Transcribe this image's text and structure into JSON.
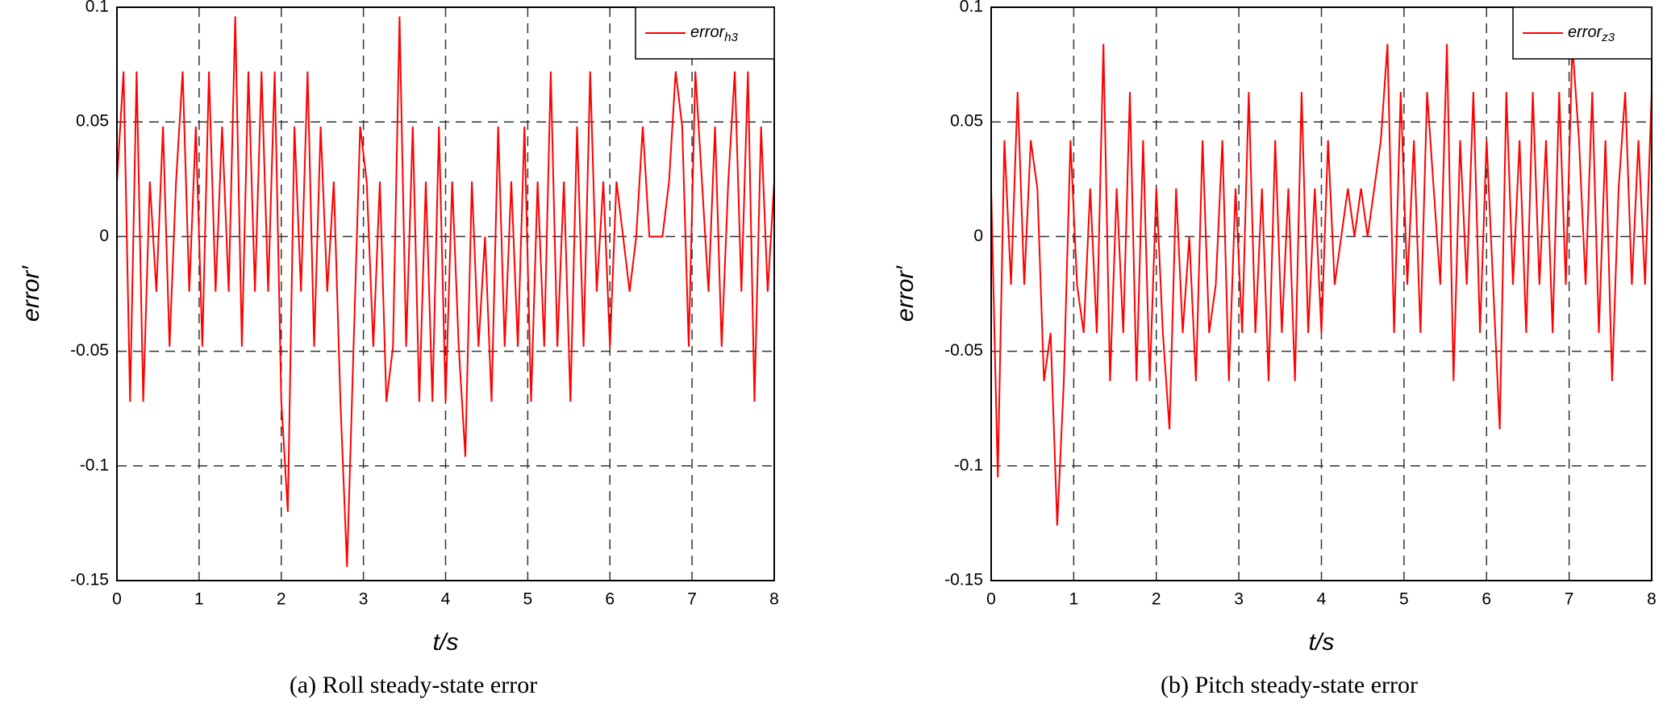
{
  "chart_data": [
    {
      "type": "line",
      "caption": "(a) Roll steady-state error",
      "xlabel": "t/s",
      "ylabel": "error′",
      "xlim": [
        0,
        8
      ],
      "xticks": [
        0,
        1,
        2,
        3,
        4,
        5,
        6,
        7,
        8
      ],
      "ylim": [
        -0.15,
        0.1
      ],
      "yticks": [
        -0.15,
        -0.1,
        -0.05,
        0,
        0.05,
        0.1
      ],
      "grid": true,
      "legend": "upper right",
      "x": [
        0,
        0.08,
        0.16,
        0.24,
        0.32,
        0.4,
        0.48,
        0.56,
        0.64,
        0.72,
        0.8,
        0.88,
        0.96,
        1.04,
        1.12,
        1.2,
        1.28,
        1.36,
        1.44,
        1.52,
        1.6,
        1.68,
        1.76,
        1.84,
        1.92,
        2,
        2.08,
        2.16,
        2.24,
        2.32,
        2.4,
        2.48,
        2.56,
        2.64,
        2.72,
        2.8,
        2.88,
        2.96,
        3.04,
        3.12,
        3.2,
        3.28,
        3.36,
        3.44,
        3.52,
        3.6,
        3.68,
        3.76,
        3.84,
        3.92,
        4,
        4.08,
        4.16,
        4.24,
        4.32,
        4.4,
        4.48,
        4.56,
        4.64,
        4.72,
        4.8,
        4.88,
        4.96,
        5.04,
        5.12,
        5.2,
        5.28,
        5.36,
        5.44,
        5.52,
        5.6,
        5.68,
        5.76,
        5.84,
        5.92,
        6,
        6.08,
        6.16,
        6.24,
        6.32,
        6.4,
        6.48,
        6.56,
        6.64,
        6.72,
        6.8,
        6.88,
        6.96,
        7.04,
        7.12,
        7.2,
        7.28,
        7.36,
        7.44,
        7.52,
        7.6,
        7.68,
        7.76,
        7.84,
        7.92,
        8
      ],
      "series": [
        {
          "name": "error",
          "name_sub": "h3",
          "color": "#ff0000",
          "values": [
            0.024,
            0.072,
            -0.072,
            0.072,
            -0.072,
            0.024,
            -0.024,
            0.048,
            -0.048,
            0.024,
            0.072,
            -0.024,
            0.048,
            -0.048,
            0.072,
            -0.024,
            0.048,
            -0.024,
            0.096,
            -0.048,
            0.072,
            -0.024,
            0.072,
            -0.024,
            0.072,
            -0.072,
            -0.12,
            0.048,
            -0.024,
            0.072,
            -0.048,
            0.048,
            -0.024,
            0.024,
            -0.072,
            -0.144,
            -0.048,
            0.048,
            0.024,
            -0.048,
            0.024,
            -0.072,
            -0.048,
            0.096,
            -0.048,
            0.048,
            -0.072,
            0.024,
            -0.072,
            0.048,
            -0.072,
            0.024,
            -0.048,
            -0.096,
            0.024,
            -0.048,
            0,
            -0.072,
            0.048,
            -0.048,
            0.024,
            -0.048,
            0.048,
            -0.072,
            0.024,
            -0.048,
            0.072,
            -0.048,
            0.024,
            -0.072,
            0.048,
            -0.048,
            0.072,
            -0.024,
            0.024,
            -0.048,
            0.024,
            0,
            -0.024,
            0,
            0.048,
            0,
            0,
            0,
            0.024,
            0.072,
            0.048,
            -0.048,
            0.072,
            0.024,
            -0.024,
            0.048,
            -0.048,
            0.024,
            0.072,
            -0.024,
            0.072,
            -0.072,
            0.048,
            -0.024,
            0.024
          ]
        }
      ]
    },
    {
      "type": "line",
      "caption": "(b) Pitch steady-state error",
      "xlabel": "t/s",
      "ylabel": "error′",
      "xlim": [
        0,
        8
      ],
      "xticks": [
        0,
        1,
        2,
        3,
        4,
        5,
        6,
        7,
        8
      ],
      "ylim": [
        -0.15,
        0.1
      ],
      "yticks": [
        -0.15,
        -0.1,
        -0.05,
        0,
        0.05,
        0.1
      ],
      "grid": true,
      "legend": "upper right",
      "x": [
        0,
        0.08,
        0.16,
        0.24,
        0.32,
        0.4,
        0.48,
        0.56,
        0.64,
        0.72,
        0.8,
        0.88,
        0.96,
        1.04,
        1.12,
        1.2,
        1.28,
        1.36,
        1.44,
        1.52,
        1.6,
        1.68,
        1.76,
        1.84,
        1.92,
        2,
        2.08,
        2.16,
        2.24,
        2.32,
        2.4,
        2.48,
        2.56,
        2.64,
        2.72,
        2.8,
        2.88,
        2.96,
        3.04,
        3.12,
        3.2,
        3.28,
        3.36,
        3.44,
        3.52,
        3.6,
        3.68,
        3.76,
        3.84,
        3.92,
        4,
        4.08,
        4.16,
        4.24,
        4.32,
        4.4,
        4.48,
        4.56,
        4.64,
        4.72,
        4.8,
        4.88,
        4.96,
        5.04,
        5.12,
        5.2,
        5.28,
        5.36,
        5.44,
        5.52,
        5.6,
        5.68,
        5.76,
        5.84,
        5.92,
        6,
        6.08,
        6.16,
        6.24,
        6.32,
        6.4,
        6.48,
        6.56,
        6.64,
        6.72,
        6.8,
        6.88,
        6.96,
        7.04,
        7.12,
        7.2,
        7.28,
        7.36,
        7.44,
        7.52,
        7.6,
        7.68,
        7.76,
        7.84,
        7.92,
        8
      ],
      "series": [
        {
          "name": "error",
          "name_sub": "z3",
          "color": "#ff0000",
          "values": [
            0.021,
            -0.105,
            0.042,
            -0.021,
            0.063,
            -0.021,
            0.042,
            0.021,
            -0.063,
            -0.042,
            -0.126,
            -0.063,
            0.042,
            -0.021,
            -0.042,
            0.021,
            -0.042,
            0.084,
            -0.063,
            0.021,
            -0.042,
            0.063,
            -0.063,
            0.042,
            -0.063,
            0.021,
            -0.042,
            -0.084,
            0.021,
            -0.042,
            0,
            -0.063,
            0.042,
            -0.042,
            -0.021,
            0.042,
            -0.063,
            0.021,
            -0.042,
            0.063,
            -0.042,
            0.021,
            -0.063,
            0.042,
            -0.042,
            0.021,
            -0.063,
            0.063,
            -0.042,
            0.021,
            -0.042,
            0.042,
            -0.021,
            0,
            0.021,
            0,
            0.021,
            0,
            0.021,
            0.042,
            0.084,
            -0.042,
            0.063,
            -0.021,
            0.042,
            -0.042,
            0.063,
            0.021,
            -0.021,
            0.084,
            -0.063,
            0.042,
            -0.021,
            0.063,
            -0.042,
            0.042,
            -0.021,
            -0.084,
            0.063,
            -0.021,
            0.042,
            -0.042,
            0.063,
            -0.021,
            0.042,
            -0.042,
            0.063,
            -0.021,
            0.084,
            0.042,
            -0.021,
            0.063,
            -0.042,
            0.042,
            -0.063,
            0.021,
            0.063,
            -0.021,
            0.042,
            -0.021,
            0.063
          ]
        }
      ]
    }
  ]
}
